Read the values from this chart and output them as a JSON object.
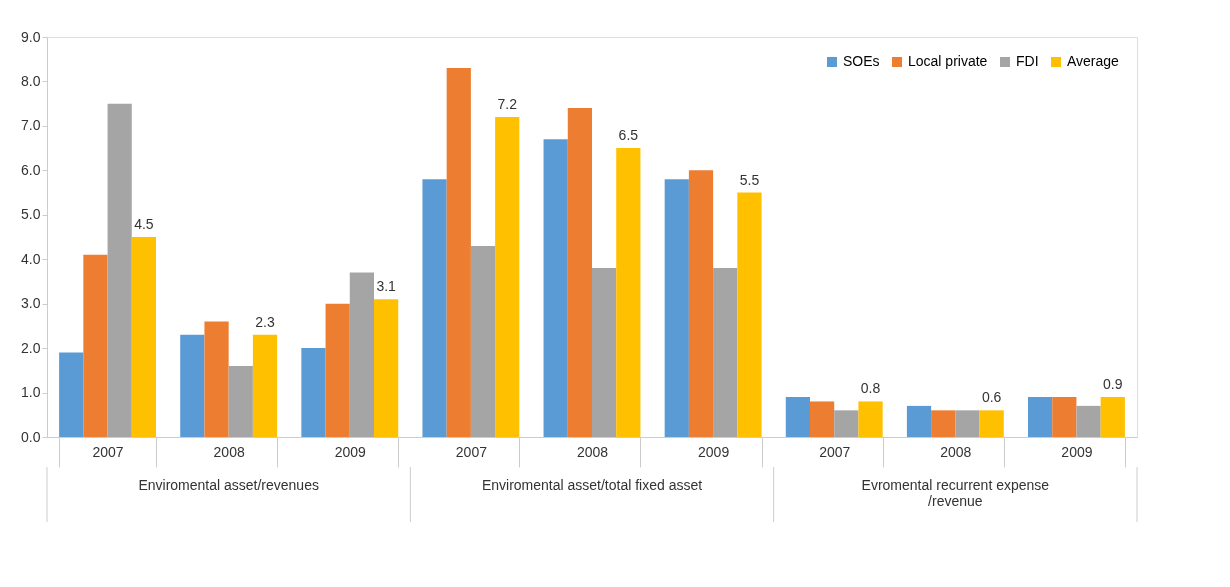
{
  "chart_data": {
    "type": "bar",
    "categories": [
      "2007",
      "2008",
      "2009",
      "2007",
      "2008",
      "2009",
      "2007",
      "2008",
      "2009"
    ],
    "series": [
      {
        "name": "SOEs",
        "color": "#5b9bd5",
        "values": [
          1.9,
          2.3,
          2.0,
          5.8,
          6.7,
          5.8,
          0.9,
          0.7,
          0.9
        ]
      },
      {
        "name": "Local private",
        "color": "#ed7d31",
        "values": [
          4.1,
          2.6,
          3.0,
          8.3,
          7.4,
          6.0,
          0.8,
          0.6,
          0.9
        ]
      },
      {
        "name": "FDI",
        "color": "#a5a5a5",
        "values": [
          7.5,
          1.6,
          3.7,
          4.3,
          3.8,
          3.8,
          0.6,
          0.6,
          0.7
        ]
      },
      {
        "name": "Average",
        "color": "#ffc000",
        "values": [
          4.5,
          2.3,
          3.1,
          7.2,
          6.5,
          5.5,
          0.8,
          0.6,
          0.9
        ],
        "value_labels": [
          "4.5",
          "2.3",
          "3.1",
          "7.2",
          "6.5",
          "5.5",
          "0.8",
          "0.6",
          "0.9"
        ]
      }
    ],
    "ylim": [
      0,
      9
    ],
    "yticks": [
      {
        "value": 0,
        "label": "0.0"
      },
      {
        "value": 1,
        "label": "1.0"
      },
      {
        "value": 2,
        "label": "2.0"
      },
      {
        "value": 3,
        "label": "3.0"
      },
      {
        "value": 4,
        "label": "4.0"
      },
      {
        "value": 5,
        "label": "5.0"
      },
      {
        "value": 6,
        "label": "6.0"
      },
      {
        "value": 7,
        "label": "7.0"
      },
      {
        "value": 8,
        "label": "8.0"
      },
      {
        "value": 9,
        "label": "9.0"
      }
    ],
    "annotations": [
      "Enviromental asset/revenues",
      "Enviromental asset/total fixed asset",
      "Evromental recurrent expense\n/revenue"
    ],
    "legend": "top right",
    "grid": false
  }
}
